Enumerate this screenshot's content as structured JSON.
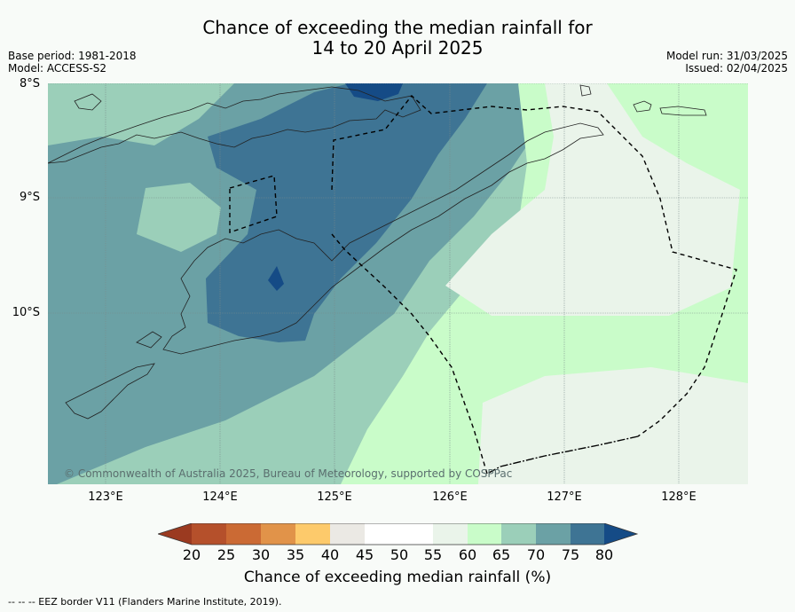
{
  "header": {
    "title_line1": "Chance of exceeding the median rainfall for",
    "title_line2": "14 to 20 April 2025",
    "base_period": "Base period: 1981-2018",
    "model": "Model: ACCESS-S2",
    "model_run": "Model run: 31/03/2025",
    "issued": "Issued: 02/04/2025"
  },
  "map": {
    "lat_labels": [
      "8°S",
      "9°S",
      "10°S"
    ],
    "lon_labels": [
      "123°E",
      "124°E",
      "125°E",
      "126°E",
      "127°E",
      "128°E"
    ],
    "credit": "© Commonwealth of Australia 2025, Bureau of Meteorology, supported by COSPPac"
  },
  "colorbar": {
    "ticks": [
      "20",
      "25",
      "30",
      "35",
      "40",
      "45",
      "50",
      "55",
      "60",
      "65",
      "70",
      "75",
      "80"
    ],
    "colors": [
      "#9b3a20",
      "#b5502b",
      "#cb6a34",
      "#e19349",
      "#fdca6b",
      "#ebe9e4",
      "#ffffff",
      "#ffffff",
      "#eaf4ea",
      "#c9fcc9",
      "#9bcfb9",
      "#6ba1a5",
      "#3e7494",
      "#154b86"
    ],
    "label": "Chance of exceeding median rainfall (%)"
  },
  "footnote": "--  --  -- EEZ border V11 (Flanders Marine Institute, 2019)."
}
